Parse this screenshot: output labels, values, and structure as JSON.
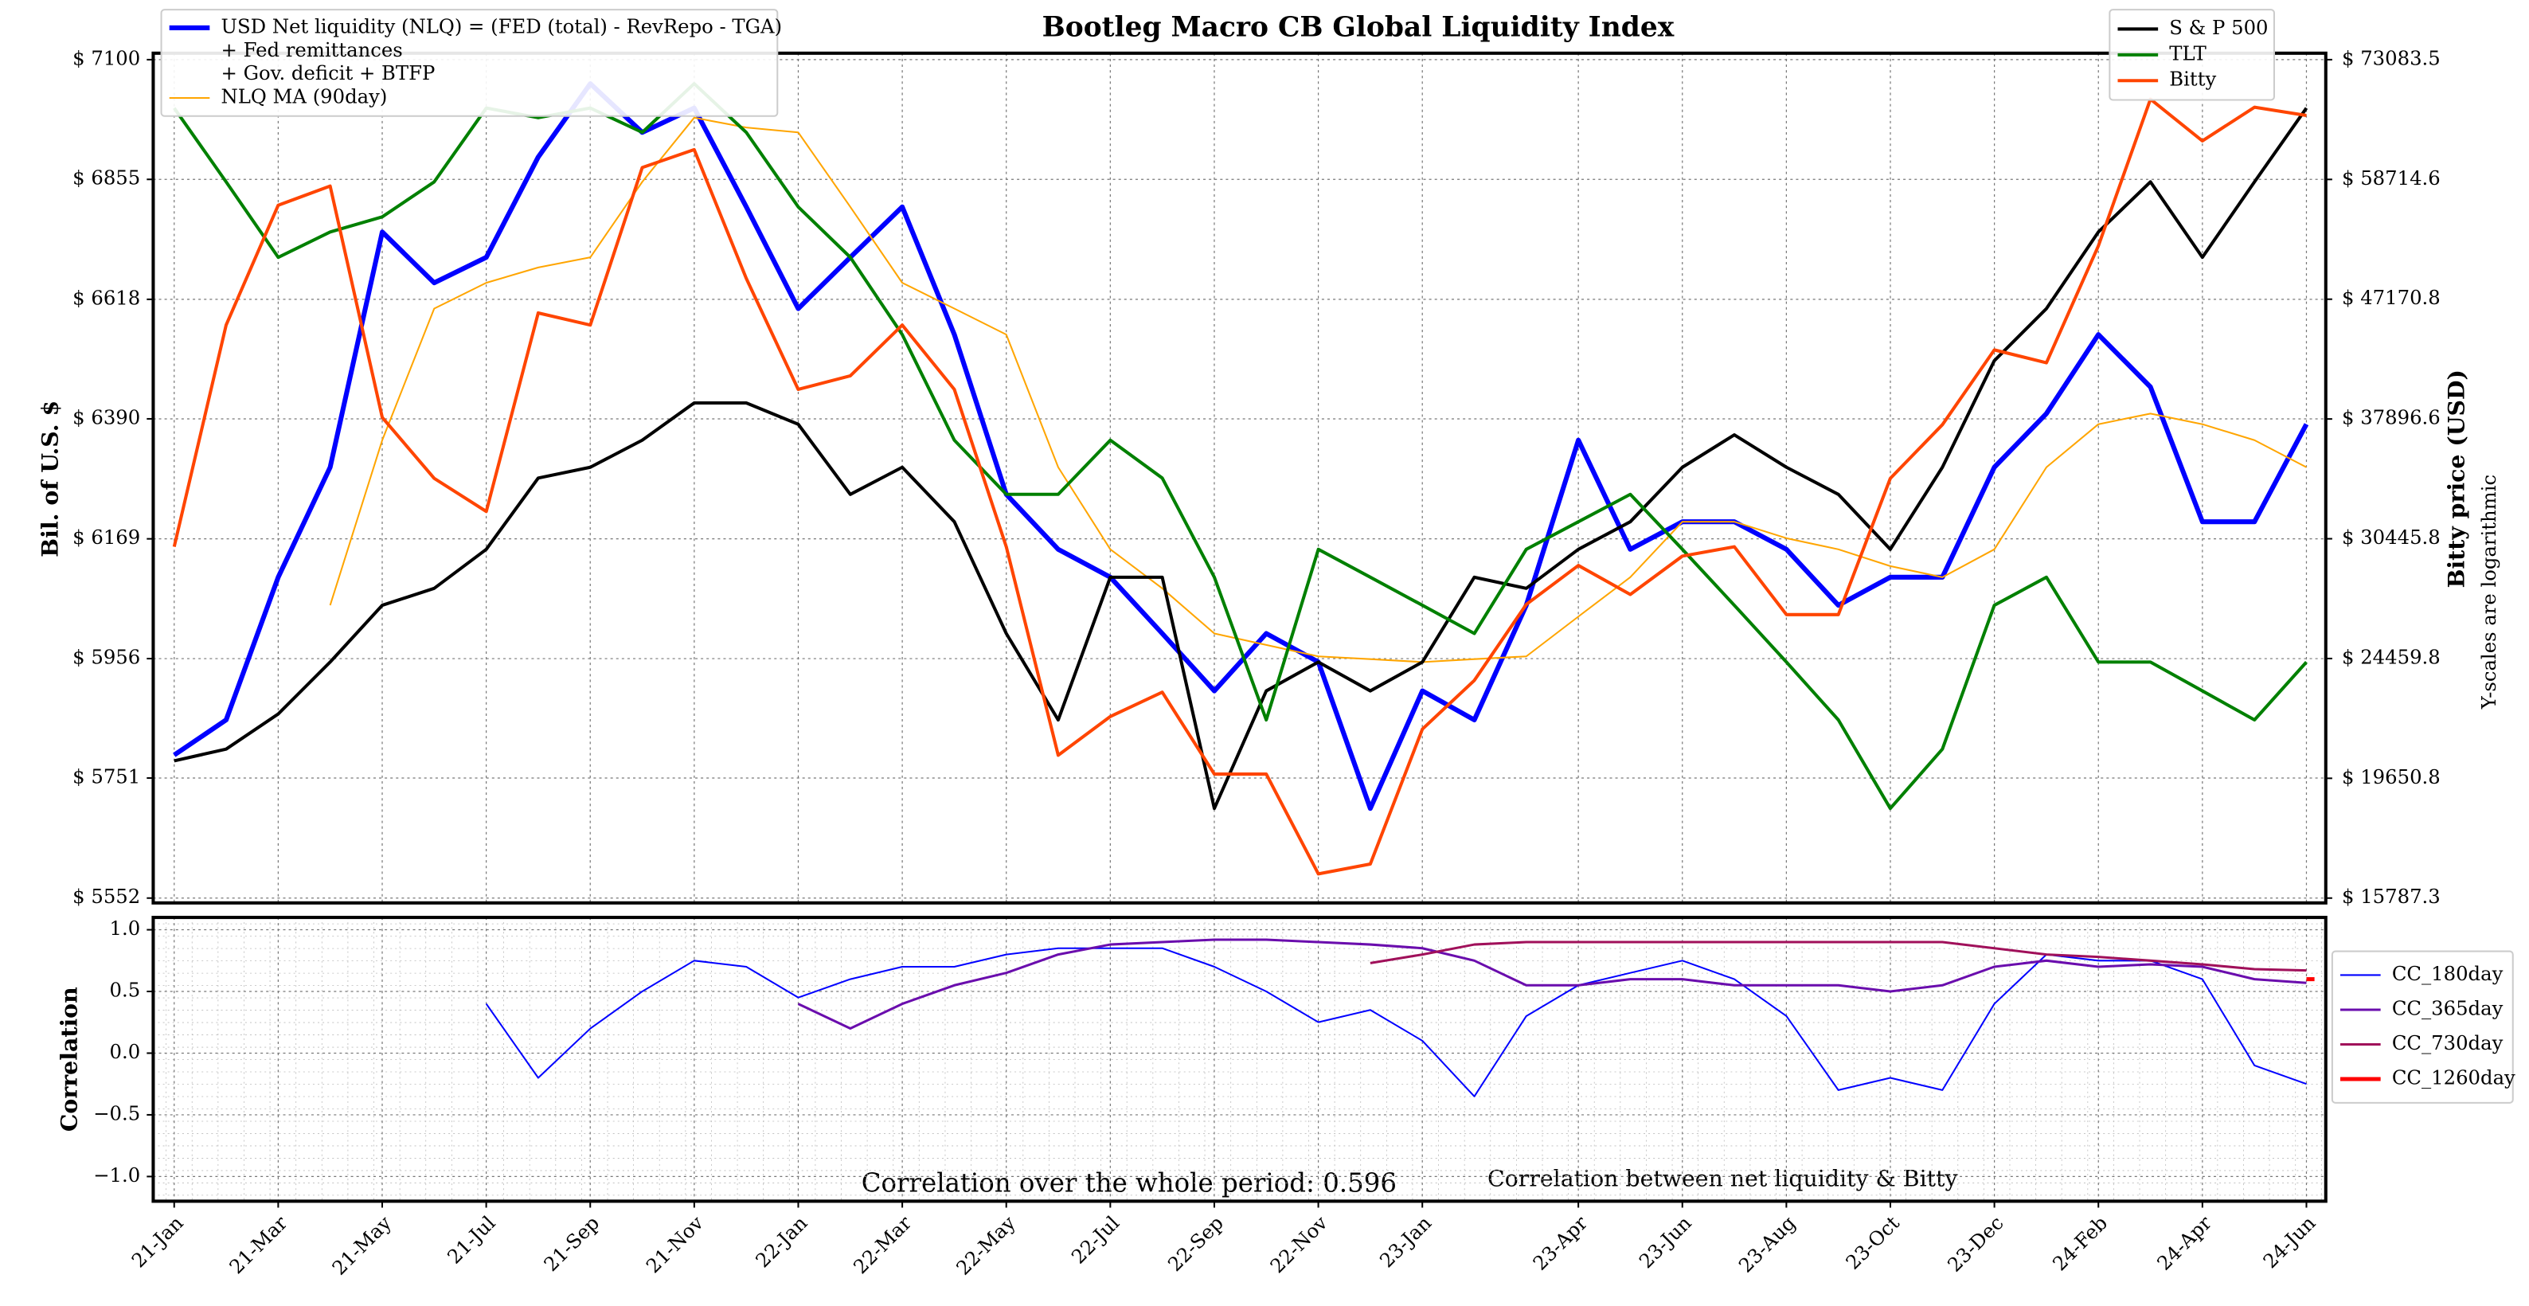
{
  "chart_data": [
    {
      "type": "line",
      "title": "Bootleg Macro CB Global Liquidity Index",
      "ylabel": "Bil. of U.S. $",
      "y2label": "Bitty price (USD)",
      "note": "Y-scales are logarithmic",
      "yscale": "log",
      "grid": true,
      "ylim": [
        5552,
        7100
      ],
      "yticks": [
        {
          "value": 5552,
          "label": "$ 5552"
        },
        {
          "value": 5751,
          "label": "$ 5751"
        },
        {
          "value": 5956,
          "label": "$ 5956"
        },
        {
          "value": 6169,
          "label": "$ 6169"
        },
        {
          "value": 6390,
          "label": "$ 6390"
        },
        {
          "value": 6618,
          "label": "$ 6618"
        },
        {
          "value": 6855,
          "label": "$ 6855"
        },
        {
          "value": 7100,
          "label": "$ 7100"
        }
      ],
      "y2lim": [
        15787.3,
        73083.5
      ],
      "y2ticks": [
        {
          "value": 15787.3,
          "label": "$ 15787.3"
        },
        {
          "value": 19650.8,
          "label": "$ 19650.8"
        },
        {
          "value": 24459.8,
          "label": "$ 24459.8"
        },
        {
          "value": 30445.8,
          "label": "$ 30445.8"
        },
        {
          "value": 37896.6,
          "label": "$ 37896.6"
        },
        {
          "value": 47170.8,
          "label": "$ 47170.8"
        },
        {
          "value": 58714.6,
          "label": "$ 58714.6"
        },
        {
          "value": 73083.5,
          "label": "$ 73083.5"
        }
      ],
      "xlim": [
        "2021-01",
        "2024-06"
      ],
      "x": [
        "2021-01",
        "2021-02",
        "2021-03",
        "2021-04",
        "2021-05",
        "2021-06",
        "2021-07",
        "2021-08",
        "2021-09",
        "2021-10",
        "2021-11",
        "2021-12",
        "2022-01",
        "2022-02",
        "2022-03",
        "2022-04",
        "2022-05",
        "2022-06",
        "2022-07",
        "2022-08",
        "2022-09",
        "2022-10",
        "2022-11",
        "2022-12",
        "2023-01",
        "2023-02",
        "2023-03",
        "2023-04",
        "2023-05",
        "2023-06",
        "2023-07",
        "2023-08",
        "2023-09",
        "2023-10",
        "2023-11",
        "2023-12",
        "2024-01",
        "2024-02",
        "2024-03",
        "2024-04",
        "2024-05",
        "2024-06"
      ],
      "series": [
        {
          "name": [
            "USD Net liquidity (NLQ) = (FED (total) - RevRepo - TGA)",
            " + Fed remittances",
            "+ Gov. deficit + BTFP"
          ],
          "color": "#0000ff",
          "width": 3,
          "legend": "upper left",
          "values": [
            5790,
            5850,
            6100,
            6300,
            6750,
            6650,
            6700,
            6900,
            7050,
            6950,
            7000,
            6800,
            6600,
            6700,
            6800,
            6550,
            6250,
            6150,
            6100,
            6000,
            5900,
            6000,
            5950,
            5700,
            5900,
            5850,
            6050,
            6350,
            6150,
            6200,
            6200,
            6150,
            6050,
            6100,
            6100,
            6300,
            6400,
            6550,
            6450,
            6200,
            6200,
            6380
          ]
        },
        {
          "name": [
            "NLQ MA (90day)"
          ],
          "color": "#ffa500",
          "width": 1,
          "legend": "upper left",
          "values": [
            null,
            null,
            null,
            6050,
            6350,
            6600,
            6650,
            6680,
            6700,
            6850,
            6980,
            6960,
            6950,
            6800,
            6650,
            6600,
            6550,
            6300,
            6150,
            6080,
            6000,
            5980,
            5960,
            5955,
            5950,
            5955,
            5960,
            6030,
            6100,
            6200,
            6200,
            6170,
            6150,
            6120,
            6100,
            6150,
            6300,
            6380,
            6400,
            6380,
            6350,
            6300
          ]
        },
        {
          "name": [
            "S & P 500"
          ],
          "color": "#000000",
          "width": 2,
          "legend": "upper right",
          "values": [
            5780,
            5800,
            5860,
            5950,
            6050,
            6080,
            6150,
            6280,
            6300,
            6350,
            6420,
            6420,
            6380,
            6250,
            6300,
            6200,
            6000,
            5850,
            6100,
            6100,
            5700,
            5900,
            5950,
            5900,
            5950,
            6100,
            6080,
            6150,
            6200,
            6300,
            6360,
            6300,
            6250,
            6150,
            6300,
            6500,
            6600,
            6750,
            6850,
            6700,
            6850,
            7000
          ]
        },
        {
          "name": [
            "TLT"
          ],
          "color": "#008000",
          "width": 2,
          "legend": "upper right",
          "values": [
            7000,
            6850,
            6700,
            6750,
            6780,
            6850,
            7000,
            6980,
            7000,
            6950,
            7050,
            6950,
            6800,
            6700,
            6550,
            6350,
            6250,
            6250,
            6350,
            6280,
            6100,
            5850,
            6150,
            6100,
            6050,
            6000,
            6150,
            6200,
            6250,
            6150,
            6050,
            5950,
            5850,
            5700,
            5800,
            6050,
            6100,
            5950,
            5950,
            5900,
            5850,
            5950
          ]
        },
        {
          "name": [
            "Bitty"
          ],
          "color": "#ff4500",
          "width": 2,
          "legend": "upper right",
          "axis": "y2",
          "values": [
            30000,
            45000,
            56000,
            58000,
            38000,
            34000,
            32000,
            46000,
            45000,
            60000,
            62000,
            49000,
            40000,
            41000,
            45000,
            40000,
            30000,
            20500,
            22000,
            23000,
            19800,
            19800,
            16500,
            16800,
            21500,
            23500,
            27000,
            29000,
            27500,
            29500,
            30000,
            26500,
            26500,
            34000,
            37500,
            43000,
            42000,
            52000,
            68000,
            63000,
            67000,
            66000
          ]
        }
      ]
    },
    {
      "type": "line",
      "ylabel": "Correlation",
      "annotations": [
        "Correlation over the whole period: 0.596",
        "Correlation between net liquidity & Bitty"
      ],
      "grid": true,
      "legend": "right",
      "ylim": [
        -1.2,
        1.1
      ],
      "yticks": [
        {
          "value": -1,
          "label": "−1.0"
        },
        {
          "value": -0.5,
          "label": "−0.5"
        },
        {
          "value": 0,
          "label": "0.0"
        },
        {
          "value": 0.5,
          "label": "0.5"
        },
        {
          "value": 1,
          "label": "1.0"
        }
      ],
      "xlim": [
        "2021-01",
        "2024-06"
      ],
      "xticks": [
        {
          "value": "2021-01",
          "label": "21-Jan"
        },
        {
          "value": "2021-03",
          "label": "21-Mar"
        },
        {
          "value": "2021-05",
          "label": "21-May"
        },
        {
          "value": "2021-07",
          "label": "21-Jul"
        },
        {
          "value": "2021-09",
          "label": "21-Sep"
        },
        {
          "value": "2021-11",
          "label": "21-Nov"
        },
        {
          "value": "2022-01",
          "label": "22-Jan"
        },
        {
          "value": "2022-03",
          "label": "22-Mar"
        },
        {
          "value": "2022-05",
          "label": "22-May"
        },
        {
          "value": "2022-07",
          "label": "22-Jul"
        },
        {
          "value": "2022-09",
          "label": "22-Sep"
        },
        {
          "value": "2022-11",
          "label": "22-Nov"
        },
        {
          "value": "2023-01",
          "label": "23-Jan"
        },
        {
          "value": "2023-04",
          "label": "23-Apr"
        },
        {
          "value": "2023-06",
          "label": "23-Jun"
        },
        {
          "value": "2023-08",
          "label": "23-Aug"
        },
        {
          "value": "2023-10",
          "label": "23-Oct"
        },
        {
          "value": "2023-12",
          "label": "23-Dec"
        },
        {
          "value": "2024-02",
          "label": "24-Feb"
        },
        {
          "value": "2024-04",
          "label": "24-Apr"
        },
        {
          "value": "2024-06",
          "label": "24-Jun"
        }
      ],
      "x": [
        "2021-01",
        "2021-02",
        "2021-03",
        "2021-04",
        "2021-05",
        "2021-06",
        "2021-07",
        "2021-08",
        "2021-09",
        "2021-10",
        "2021-11",
        "2021-12",
        "2022-01",
        "2022-02",
        "2022-03",
        "2022-04",
        "2022-05",
        "2022-06",
        "2022-07",
        "2022-08",
        "2022-09",
        "2022-10",
        "2022-11",
        "2022-12",
        "2023-01",
        "2023-02",
        "2023-03",
        "2023-04",
        "2023-05",
        "2023-06",
        "2023-07",
        "2023-08",
        "2023-09",
        "2023-10",
        "2023-11",
        "2023-12",
        "2024-01",
        "2024-02",
        "2024-03",
        "2024-04",
        "2024-05",
        "2024-06"
      ],
      "series": [
        {
          "name": [
            "CC_180day"
          ],
          "color": "#0000ff",
          "width": 1,
          "values": [
            null,
            null,
            null,
            null,
            null,
            null,
            0.4,
            -0.2,
            0.2,
            0.5,
            0.75,
            0.7,
            0.45,
            0.6,
            0.7,
            0.7,
            0.8,
            0.85,
            0.85,
            0.85,
            0.7,
            0.5,
            0.25,
            0.35,
            0.1,
            -0.35,
            0.3,
            0.55,
            0.65,
            0.75,
            0.6,
            0.3,
            -0.3,
            -0.2,
            -0.3,
            0.4,
            0.8,
            0.75,
            0.75,
            0.6,
            -0.1,
            -0.25
          ]
        },
        {
          "name": [
            "CC_365day"
          ],
          "color": "#6a0dad",
          "width": 1.5,
          "values": [
            null,
            null,
            null,
            null,
            null,
            null,
            null,
            null,
            null,
            null,
            null,
            null,
            0.4,
            0.2,
            0.4,
            0.55,
            0.65,
            0.8,
            0.88,
            0.9,
            0.92,
            0.92,
            0.9,
            0.88,
            0.85,
            0.75,
            0.55,
            0.55,
            0.6,
            0.6,
            0.55,
            0.55,
            0.55,
            0.5,
            0.55,
            0.7,
            0.75,
            0.7,
            0.72,
            0.7,
            0.6,
            0.57
          ]
        },
        {
          "name": [
            "CC_730day"
          ],
          "color": "#a0105a",
          "width": 1.5,
          "values": [
            null,
            null,
            null,
            null,
            null,
            null,
            null,
            null,
            null,
            null,
            null,
            null,
            null,
            null,
            null,
            null,
            null,
            null,
            null,
            null,
            null,
            null,
            null,
            0.73,
            0.8,
            0.88,
            0.9,
            0.9,
            0.9,
            0.9,
            0.9,
            0.9,
            0.9,
            0.9,
            0.9,
            0.85,
            0.8,
            0.78,
            0.75,
            0.72,
            0.68,
            0.67
          ]
        },
        {
          "name": [
            "CC_1260day"
          ],
          "color": "#ff0000",
          "width": 2.5,
          "values": [
            null,
            null,
            null,
            null,
            null,
            null,
            null,
            null,
            null,
            null,
            null,
            null,
            null,
            null,
            null,
            null,
            null,
            null,
            null,
            null,
            null,
            null,
            null,
            null,
            null,
            null,
            null,
            null,
            null,
            null,
            null,
            null,
            null,
            null,
            null,
            null,
            null,
            null,
            null,
            null,
            null,
            0.6
          ]
        }
      ]
    }
  ]
}
